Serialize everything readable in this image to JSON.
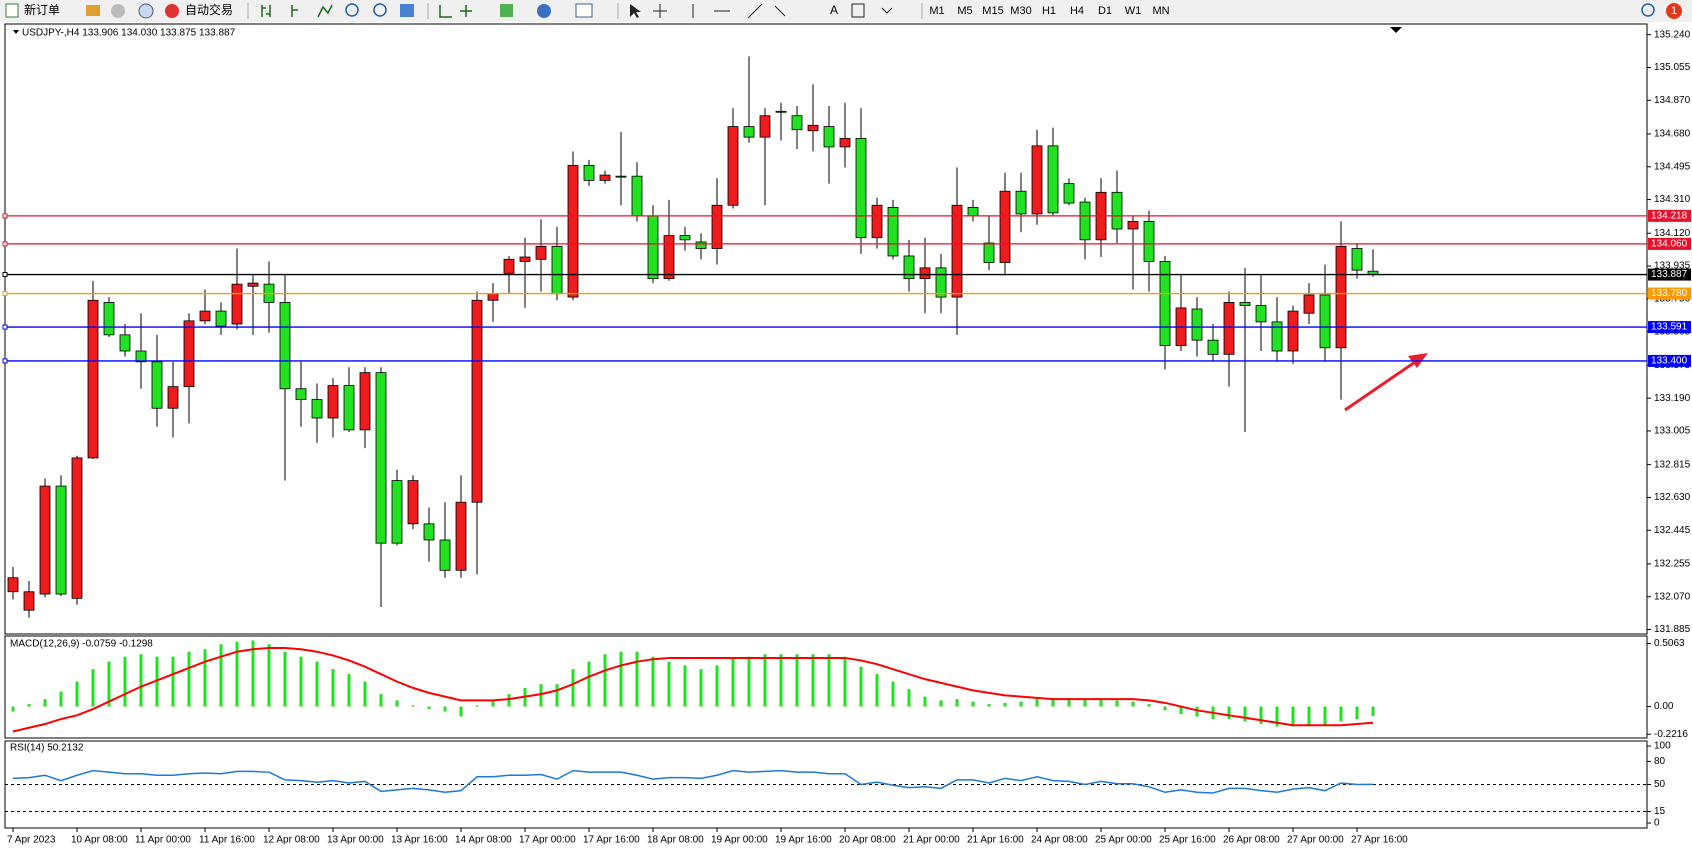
{
  "toolbar": {
    "new_order": "新订单",
    "auto_trading": "自动交易",
    "text_tool": "A",
    "timeframes": [
      "M1",
      "M5",
      "M15",
      "M30",
      "H1",
      "H4",
      "D1",
      "W1",
      "MN"
    ],
    "alerts": 1
  },
  "chart_data": [
    {
      "type": "candlestick",
      "title": "USDJPY-,H4  133.906 134.030 133.875 133.887",
      "categories": [
        "7 Apr 2023",
        null,
        null,
        null,
        "10 Apr 08:00",
        null,
        null,
        null,
        "11 Apr 00:00",
        null,
        null,
        null,
        "11 Apr 16:00",
        null,
        null,
        null,
        "12 Apr 08:00",
        null,
        null,
        null,
        "13 Apr 00:00",
        null,
        null,
        null,
        "13 Apr 16:00",
        null,
        null,
        null,
        "14 Apr 08:00",
        null,
        null,
        null,
        "17 Apr 00:00",
        null,
        null,
        null,
        "17 Apr 16:00",
        null,
        null,
        null,
        "18 Apr 08:00",
        null,
        null,
        null,
        "19 Apr 00:00",
        null,
        null,
        null,
        "19 Apr 16:00",
        null,
        null,
        null,
        "20 Apr 08:00",
        null,
        null,
        null,
        "21 Apr 00:00",
        null,
        null,
        null,
        "21 Apr 16:00",
        null,
        null,
        null,
        "24 Apr 08:00",
        null,
        null,
        null,
        "25 Apr 00:00",
        null,
        null,
        null,
        "25 Apr 16:00",
        null,
        null,
        null,
        "26 Apr 08:00",
        null,
        null,
        null,
        "27 Apr 00:00",
        null,
        null,
        null,
        "27 Apr 16:00",
        null
      ],
      "open": [
        132.098,
        131.994,
        132.085,
        132.694,
        132.061,
        132.853,
        133.73,
        133.547,
        133.456,
        133.395,
        133.133,
        133.255,
        133.626,
        133.681,
        133.608,
        133.821,
        133.833,
        133.73,
        133.243,
        133.182,
        133.078,
        133.261,
        133.011,
        133.334,
        132.725,
        132.481,
        132.481,
        132.39,
        132.219,
        132.603,
        133.742,
        133.894,
        133.961,
        133.973,
        134.046,
        133.76,
        134.503,
        134.418,
        134.442,
        134.442,
        134.217,
        133.864,
        134.107,
        134.071,
        134.034,
        134.278,
        134.722,
        134.662,
        134.808,
        134.783,
        134.698,
        134.722,
        134.607,
        134.655,
        134.095,
        134.266,
        133.992,
        133.864,
        133.925,
        133.76,
        134.266,
        134.065,
        133.955,
        134.357,
        134.229,
        134.613,
        134.4,
        134.296,
        134.083,
        134.351,
        134.144,
        134.187,
        133.961,
        133.486,
        133.693,
        133.517,
        133.437,
        133.73,
        133.712,
        133.62,
        133.456,
        133.669,
        133.772,
        133.474,
        134.034,
        133.906
      ],
      "high": [
        132.238,
        132.159,
        132.737,
        132.755,
        132.865,
        133.852,
        133.76,
        133.608,
        133.669,
        133.547,
        133.395,
        133.669,
        133.803,
        133.73,
        134.034,
        133.882,
        133.961,
        133.882,
        133.395,
        133.273,
        133.303,
        133.364,
        133.364,
        133.364,
        132.786,
        132.755,
        132.573,
        132.603,
        132.755,
        133.791,
        133.839,
        133.992,
        134.095,
        134.199,
        134.156,
        134.582,
        134.534,
        134.473,
        134.692,
        134.521,
        134.278,
        134.308,
        134.156,
        134.12,
        134.43,
        134.826,
        135.118,
        134.826,
        134.856,
        134.838,
        134.96,
        134.838,
        134.856,
        134.826,
        134.321,
        134.308,
        134.083,
        134.095,
        134.004,
        134.491,
        134.308,
        134.217,
        134.461,
        134.461,
        134.704,
        134.716,
        134.43,
        134.321,
        134.43,
        134.473,
        134.217,
        134.247,
        133.992,
        133.882,
        133.76,
        133.608,
        133.791,
        133.925,
        133.882,
        133.76,
        133.712,
        133.839,
        133.943,
        134.187,
        134.065,
        134.03
      ],
      "low": [
        132.055,
        131.952,
        132.067,
        132.073,
        132.025,
        132.847,
        133.535,
        133.425,
        133.243,
        133.029,
        132.969,
        133.048,
        133.608,
        133.547,
        133.578,
        133.547,
        133.559,
        132.725,
        133.029,
        132.938,
        132.969,
        132.999,
        132.908,
        132.012,
        132.36,
        132.451,
        132.268,
        132.177,
        132.177,
        132.195,
        133.62,
        133.779,
        133.699,
        133.791,
        133.742,
        133.742,
        134.388,
        134.4,
        134.278,
        134.187,
        133.839,
        133.852,
        134.022,
        133.973,
        133.943,
        134.26,
        134.631,
        134.278,
        134.643,
        134.595,
        134.582,
        134.4,
        134.491,
        134.004,
        134.034,
        133.973,
        133.791,
        133.669,
        133.669,
        133.547,
        134.187,
        133.912,
        133.882,
        134.126,
        134.168,
        134.217,
        134.278,
        133.973,
        133.986,
        134.065,
        133.803,
        133.791,
        133.352,
        133.456,
        133.425,
        133.395,
        133.255,
        132.999,
        133.456,
        133.395,
        133.383,
        133.608,
        133.395,
        133.182,
        133.864,
        133.875
      ],
      "close": [
        132.177,
        132.098,
        132.694,
        132.085,
        132.853,
        133.742,
        133.547,
        133.456,
        133.395,
        133.133,
        133.255,
        133.626,
        133.681,
        133.596,
        133.833,
        133.839,
        133.73,
        133.243,
        133.182,
        133.078,
        133.261,
        133.011,
        133.334,
        132.372,
        132.372,
        132.725,
        132.39,
        132.219,
        132.603,
        133.742,
        133.779,
        133.973,
        133.986,
        134.046,
        133.779,
        134.503,
        134.418,
        134.448,
        134.442,
        134.217,
        133.864,
        134.107,
        134.083,
        134.034,
        134.278,
        134.722,
        134.662,
        134.783,
        134.808,
        134.704,
        134.729,
        134.607,
        134.655,
        134.095,
        134.278,
        133.992,
        133.864,
        133.925,
        133.76,
        134.278,
        134.217,
        133.955,
        134.357,
        134.229,
        134.613,
        134.235,
        134.29,
        134.083,
        134.351,
        134.144,
        134.187,
        133.961,
        133.486,
        133.699,
        133.517,
        133.437,
        133.73,
        133.712,
        133.62,
        133.456,
        133.681,
        133.772,
        133.474,
        134.046,
        133.912,
        133.887
      ],
      "up_color": "#ee1c1c",
      "down_color": "#22e022",
      "wick_color": "#000000",
      "ylim": [
        131.871,
        135.289
      ],
      "yticks": [
        {
          "value": 135.24,
          "label": "135.240"
        },
        135.055,
        {
          "value": 134.87,
          "label": "134.870"
        },
        {
          "value": 134.68,
          "label": "134.680"
        },
        134.495,
        {
          "value": 134.31,
          "label": "134.310"
        },
        {
          "value": 134.12,
          "label": "134.120"
        },
        133.935,
        {
          "value": 133.75,
          "label": "133.750"
        },
        133.565,
        133.375,
        {
          "value": 133.19,
          "label": "133.190"
        },
        133.005,
        132.815,
        {
          "value": 132.63,
          "label": "132.630"
        },
        132.445,
        132.255,
        {
          "value": 132.07,
          "label": "132.070"
        },
        131.885
      ],
      "hlines": [
        {
          "value": 134.218,
          "color": "#e8102a"
        },
        {
          "value": 134.06,
          "label": "134.060",
          "color": "#e8102a"
        },
        {
          "value": 133.887,
          "color": "#000000"
        },
        {
          "value": 133.78,
          "label": "133.780",
          "color": "#ff9900"
        },
        {
          "value": 133.591,
          "color": "#0000ff"
        },
        {
          "value": 133.4,
          "label": "133.400",
          "color": "#0000ff"
        }
      ],
      "grid": false
    },
    {
      "type": "macd",
      "title": "MACD(12,26,9) -0.0759 -0.1298",
      "histogram": {
        "color": "#22e022",
        "values": [
          -0.04,
          0.02,
          0.06,
          0.12,
          0.2,
          0.3,
          0.36,
          0.4,
          0.42,
          0.4,
          0.4,
          0.44,
          0.46,
          0.5,
          0.52,
          0.53,
          0.5,
          0.44,
          0.4,
          0.36,
          0.3,
          0.26,
          0.2,
          0.1,
          0.05,
          0.01,
          -0.02,
          -0.04,
          -0.08,
          0.01,
          0.05,
          0.1,
          0.15,
          0.18,
          0.18,
          0.3,
          0.36,
          0.42,
          0.44,
          0.44,
          0.4,
          0.36,
          0.33,
          0.3,
          0.33,
          0.39,
          0.4,
          0.42,
          0.42,
          0.42,
          0.42,
          0.42,
          0.4,
          0.32,
          0.26,
          0.2,
          0.14,
          0.08,
          0.05,
          0.06,
          0.04,
          0.02,
          0.03,
          0.04,
          0.07,
          0.07,
          0.07,
          0.06,
          0.06,
          0.05,
          0.04,
          0.02,
          -0.03,
          -0.06,
          -0.08,
          -0.1,
          -0.1,
          -0.12,
          -0.14,
          -0.16,
          -0.16,
          -0.16,
          -0.15,
          -0.12,
          -0.1,
          -0.0759
        ]
      },
      "signal": {
        "color": "#ff0000",
        "values": [
          -0.2,
          -0.17,
          -0.14,
          -0.1,
          -0.07,
          -0.02,
          0.04,
          0.1,
          0.16,
          0.21,
          0.26,
          0.31,
          0.36,
          0.4,
          0.44,
          0.46,
          0.47,
          0.47,
          0.46,
          0.44,
          0.41,
          0.37,
          0.32,
          0.26,
          0.2,
          0.15,
          0.11,
          0.08,
          0.05,
          0.05,
          0.05,
          0.06,
          0.08,
          0.1,
          0.13,
          0.18,
          0.24,
          0.29,
          0.33,
          0.36,
          0.38,
          0.39,
          0.39,
          0.39,
          0.39,
          0.39,
          0.39,
          0.39,
          0.39,
          0.39,
          0.39,
          0.39,
          0.39,
          0.37,
          0.34,
          0.3,
          0.26,
          0.22,
          0.19,
          0.16,
          0.13,
          0.11,
          0.09,
          0.08,
          0.07,
          0.06,
          0.06,
          0.06,
          0.06,
          0.06,
          0.06,
          0.05,
          0.03,
          0,
          -0.03,
          -0.05,
          -0.07,
          -0.09,
          -0.11,
          -0.13,
          -0.15,
          -0.15,
          -0.15,
          -0.15,
          -0.14,
          -0.1298
        ]
      },
      "ylim": [
        -0.244,
        0.558
      ],
      "yticks": [
        0.5063,
        {
          "value": 0,
          "label": "0.00"
        },
        -0.2216
      ],
      "grid": false
    },
    {
      "type": "line",
      "title": "RSI(14) 50.2132",
      "color": "#1e78d8",
      "values": [
        58,
        59,
        62,
        55,
        62,
        68,
        66,
        64,
        64,
        62,
        62,
        64,
        65,
        64,
        67,
        67,
        66,
        56,
        55,
        53,
        55,
        52,
        54,
        41,
        43,
        45,
        43,
        40,
        42,
        60,
        60,
        62,
        62,
        63,
        57,
        68,
        66,
        66,
        66,
        62,
        57,
        59,
        59,
        58,
        62,
        68,
        66,
        67,
        68,
        66,
        66,
        64,
        64,
        50,
        53,
        49,
        46,
        47,
        45,
        56,
        56,
        52,
        58,
        55,
        60,
        55,
        54,
        50,
        54,
        51,
        51,
        47,
        40,
        43,
        40,
        39,
        45,
        45,
        42,
        40,
        44,
        46,
        42,
        52,
        50,
        50.2132
      ],
      "ylim": [
        0,
        100
      ],
      "yticks": [
        100,
        80,
        50,
        15,
        0
      ],
      "levels": [
        50,
        15
      ],
      "grid": false
    }
  ]
}
